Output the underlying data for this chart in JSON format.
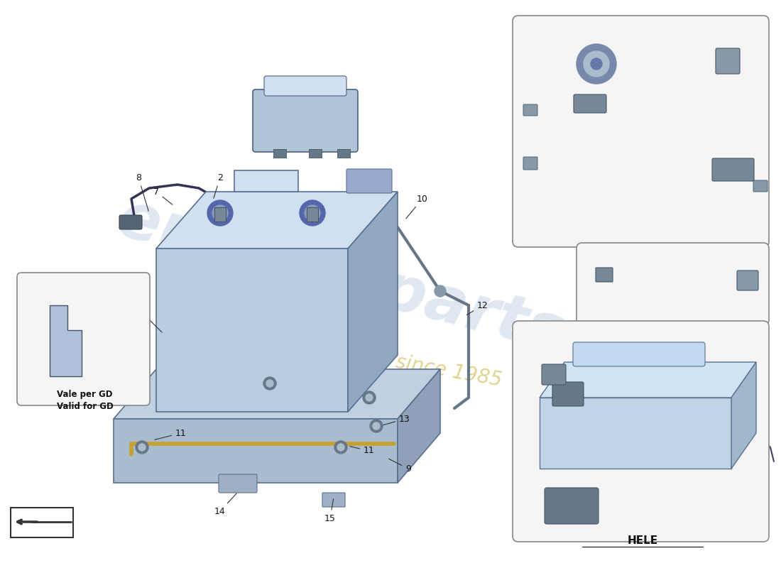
{
  "bg": "#ffffff",
  "bat_fill": "#b8cce0",
  "bat_edge": "#5a7090",
  "bat_top": "#d0e0f0",
  "bat_side": "#90a8c0",
  "tray_fill": "#a8bcd0",
  "tray_edge": "#5a7090",
  "module_fill": "#b0c4d8",
  "module_edge": "#4a6080",
  "box_edge": "#888888",
  "box_fill": "#f5f5f5",
  "cable_col": "#444466",
  "blue_cable": "#5599dd",
  "wm_col": "#c5d5e5",
  "wm_passion": "#d4c060",
  "label_col": "#111111",
  "arrow_col": "#333333",
  "hele_label": "HELE",
  "valid_text1": "Vale per GD",
  "valid_text2": "Valid for GD"
}
